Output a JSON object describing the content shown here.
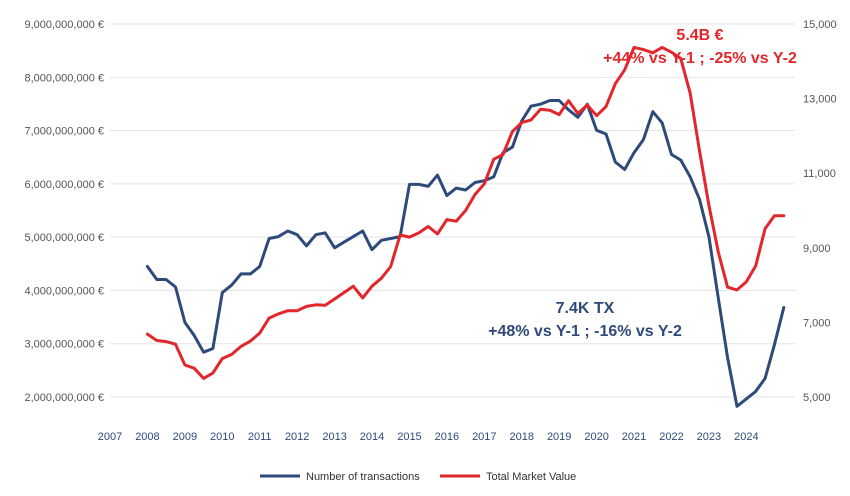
{
  "chart_data": {
    "type": "line",
    "title": "",
    "xlabel": "",
    "ylabel_left": "",
    "ylabel_right": "",
    "x_tick_labels": [
      "2007",
      "2008",
      "2009",
      "2010",
      "2011",
      "2012",
      "2013",
      "2014",
      "2015",
      "2016",
      "2017",
      "2018",
      "2019",
      "2020",
      "2021",
      "2022",
      "2023",
      "2024"
    ],
    "left_axis": {
      "ylim": [
        2000000000,
        9000000000
      ],
      "tick_labels": [
        "2,000,000,000 €",
        "3,000,000,000 €",
        "4,000,000,000 €",
        "5,000,000,000 €",
        "6,000,000,000 €",
        "7,000,000,000 €",
        "8,000,000,000 €",
        "9,000,000,000 €"
      ],
      "tick_values": [
        2000000000,
        3000000000,
        4000000000,
        5000000000,
        6000000000,
        7000000000,
        8000000000,
        9000000000
      ]
    },
    "right_axis": {
      "ylim": [
        5000,
        15000
      ],
      "tick_labels": [
        "5,000",
        "7,000",
        "9,000",
        "11,000",
        "13,000",
        "15,000"
      ],
      "tick_values": [
        5000,
        7000,
        9000,
        11000,
        13000,
        15000
      ]
    },
    "grid": true,
    "legend_position": "bottom",
    "series": [
      {
        "name": "Number of transactions",
        "axis": "right",
        "color": "#2e4a7a",
        "x": [
          2008.0,
          2008.25,
          2008.5,
          2008.75,
          2009.0,
          2009.25,
          2009.5,
          2009.75,
          2010.0,
          2010.25,
          2010.5,
          2010.75,
          2011.0,
          2011.25,
          2011.5,
          2011.75,
          2012.0,
          2012.25,
          2012.5,
          2012.75,
          2013.0,
          2013.25,
          2013.5,
          2013.75,
          2014.0,
          2014.25,
          2014.5,
          2014.75,
          2015.0,
          2015.25,
          2015.5,
          2015.75,
          2016.0,
          2016.25,
          2016.5,
          2016.75,
          2017.0,
          2017.25,
          2017.5,
          2017.75,
          2018.0,
          2018.25,
          2018.5,
          2018.75,
          2019.0,
          2019.25,
          2019.5,
          2019.75,
          2020.0,
          2020.25,
          2020.5,
          2020.75,
          2021.0,
          2021.25,
          2021.5,
          2021.75,
          2022.0,
          2022.25,
          2022.5,
          2022.75,
          2023.0,
          2023.25,
          2023.5,
          2023.75,
          2024.0,
          2024.25,
          2024.5,
          2024.75,
          2025.0
        ],
        "values": [
          8500,
          8150,
          8150,
          7950,
          7000,
          6650,
          6200,
          6300,
          7800,
          8000,
          8300,
          8300,
          8500,
          9250,
          9300,
          9450,
          9350,
          9050,
          9350,
          9400,
          9000,
          9150,
          9300,
          9450,
          8950,
          9200,
          9250,
          9300,
          10700,
          10700,
          10650,
          10950,
          10400,
          10600,
          10550,
          10750,
          10800,
          10900,
          11550,
          11700,
          12400,
          12800,
          12850,
          12950,
          12950,
          12700,
          12500,
          12850,
          12150,
          12050,
          11300,
          11100,
          11550,
          11900,
          12650,
          12350,
          11500,
          11350,
          10900,
          10300,
          9300,
          7650,
          6050,
          4750,
          4950,
          5150,
          5500,
          6400,
          7400
        ]
      },
      {
        "name": "Total Market Value",
        "axis": "left",
        "color": "#e3262b",
        "x": [
          2008.0,
          2008.25,
          2008.5,
          2008.75,
          2009.0,
          2009.25,
          2009.5,
          2009.75,
          2010.0,
          2010.25,
          2010.5,
          2010.75,
          2011.0,
          2011.25,
          2011.5,
          2011.75,
          2012.0,
          2012.25,
          2012.5,
          2012.75,
          2013.0,
          2013.25,
          2013.5,
          2013.75,
          2014.0,
          2014.25,
          2014.5,
          2014.75,
          2015.0,
          2015.25,
          2015.5,
          2015.75,
          2016.0,
          2016.25,
          2016.5,
          2016.75,
          2017.0,
          2017.25,
          2017.5,
          2017.75,
          2018.0,
          2018.25,
          2018.5,
          2018.75,
          2019.0,
          2019.25,
          2019.5,
          2019.75,
          2020.0,
          2020.25,
          2020.5,
          2020.75,
          2021.0,
          2021.25,
          2021.5,
          2021.75,
          2022.0,
          2022.25,
          2022.5,
          2022.75,
          2023.0,
          2023.25,
          2023.5,
          2023.75,
          2024.0,
          2024.25,
          2024.5,
          2024.75,
          2025.0
        ],
        "values": [
          3180000000,
          3060000000,
          3040000000,
          2990000000,
          2600000000,
          2540000000,
          2350000000,
          2450000000,
          2720000000,
          2800000000,
          2950000000,
          3050000000,
          3200000000,
          3480000000,
          3560000000,
          3620000000,
          3620000000,
          3700000000,
          3730000000,
          3720000000,
          3840000000,
          3960000000,
          4080000000,
          3860000000,
          4080000000,
          4230000000,
          4450000000,
          5040000000,
          5000000000,
          5080000000,
          5200000000,
          5060000000,
          5330000000,
          5300000000,
          5500000000,
          5800000000,
          6000000000,
          6460000000,
          6550000000,
          6980000000,
          7150000000,
          7200000000,
          7400000000,
          7380000000,
          7300000000,
          7560000000,
          7320000000,
          7480000000,
          7280000000,
          7450000000,
          7880000000,
          8140000000,
          8560000000,
          8520000000,
          8460000000,
          8560000000,
          8470000000,
          8350000000,
          7700000000,
          6620000000,
          5600000000,
          4720000000,
          4060000000,
          4010000000,
          4160000000,
          4460000000,
          5160000000,
          5400000000,
          5400000000
        ]
      }
    ],
    "annotations": {
      "red_line1": "5.4B €",
      "red_line2": "+44% vs Y-1 ; -25% vs Y-2",
      "blue_line1": "7.4K TX",
      "blue_line2": "+48% vs Y-1 ; -16% vs Y-2"
    }
  }
}
